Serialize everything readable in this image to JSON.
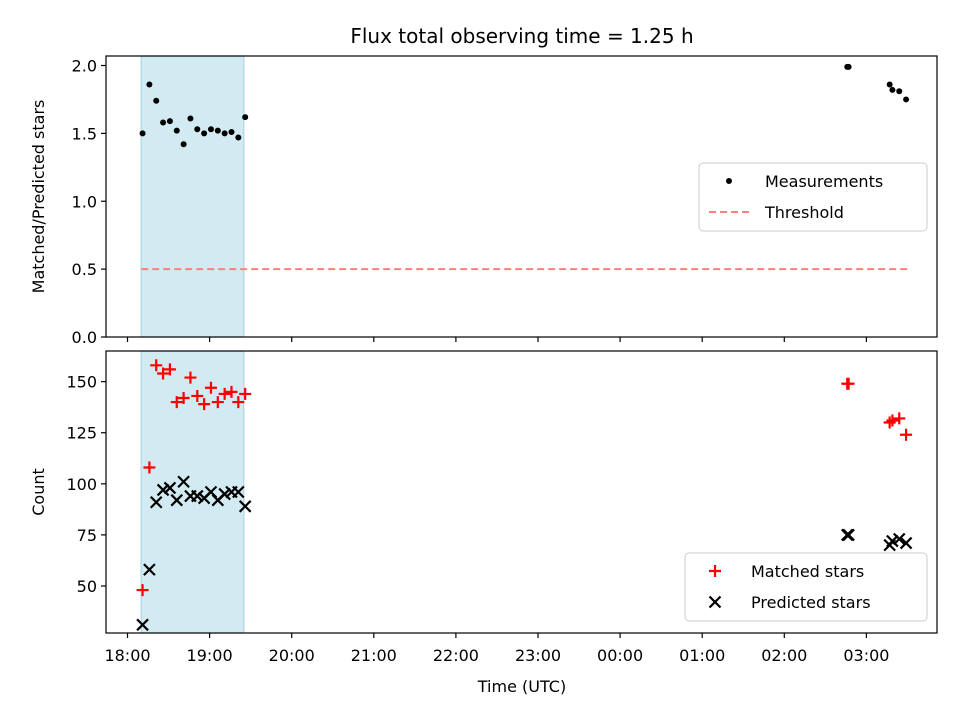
{
  "figure": {
    "title": "Flux total observing time = 1.25 h",
    "xlabel": "Time (UTC)",
    "xticks": [
      "18:00",
      "19:00",
      "20:00",
      "21:00",
      "22:00",
      "23:00",
      "00:00",
      "01:00",
      "02:00",
      "03:00"
    ],
    "shaded_interval": [
      "18:10",
      "19:25"
    ],
    "shade_color": "#add8e6"
  },
  "chart_data": [
    {
      "type": "scatter",
      "title": "Flux total observing time = 1.25 h",
      "xlabel": "Time (UTC)",
      "ylabel": "Matched/Predicted stars",
      "ylim": [
        0,
        2.07
      ],
      "yticks": [
        "0.0",
        "0.5",
        "1.0",
        "1.5",
        "2.0"
      ],
      "legend_position": "center-right",
      "series": [
        {
          "name": "Measurements",
          "color": "#000000",
          "marker": "dot",
          "points": [
            [
              "18:11",
              1.5
            ],
            [
              "18:16",
              1.86
            ],
            [
              "18:21",
              1.74
            ],
            [
              "18:26",
              1.58
            ],
            [
              "18:31",
              1.59
            ],
            [
              "18:36",
              1.52
            ],
            [
              "18:41",
              1.42
            ],
            [
              "18:46",
              1.61
            ],
            [
              "18:51",
              1.53
            ],
            [
              "18:56",
              1.5
            ],
            [
              "19:01",
              1.53
            ],
            [
              "19:06",
              1.52
            ],
            [
              "19:11",
              1.5
            ],
            [
              "19:16",
              1.51
            ],
            [
              "19:21",
              1.47
            ],
            [
              "19:26",
              1.62
            ],
            [
              "02:46",
              1.99
            ],
            [
              "02:47",
              1.99
            ],
            [
              "03:17",
              1.86
            ],
            [
              "03:19",
              1.82
            ],
            [
              "03:24",
              1.81
            ],
            [
              "03:29",
              1.75
            ]
          ]
        },
        {
          "name": "Threshold",
          "color": "#ff7f7f",
          "marker": "dashed-line",
          "points": [
            [
              "18:10",
              0.5
            ],
            [
              "03:31",
              0.5
            ]
          ]
        }
      ]
    },
    {
      "type": "scatter",
      "xlabel": "Time (UTC)",
      "ylabel": "Count",
      "ylim": [
        27,
        165
      ],
      "yticks": [
        "50",
        "75",
        "100",
        "125",
        "150"
      ],
      "legend_position": "bottom-right",
      "series": [
        {
          "name": "Matched stars",
          "color": "#ff0000",
          "marker": "plus",
          "points": [
            [
              "18:11",
              48
            ],
            [
              "18:16",
              108
            ],
            [
              "18:21",
              158
            ],
            [
              "18:26",
              154
            ],
            [
              "18:31",
              156
            ],
            [
              "18:36",
              140
            ],
            [
              "18:41",
              142
            ],
            [
              "18:46",
              152
            ],
            [
              "18:51",
              143
            ],
            [
              "18:56",
              139
            ],
            [
              "19:01",
              147
            ],
            [
              "19:06",
              140
            ],
            [
              "19:11",
              144
            ],
            [
              "19:16",
              145
            ],
            [
              "19:21",
              140
            ],
            [
              "19:26",
              144
            ],
            [
              "02:46",
              149
            ],
            [
              "02:47",
              149
            ],
            [
              "03:17",
              130
            ],
            [
              "03:19",
              131
            ],
            [
              "03:24",
              132
            ],
            [
              "03:29",
              124
            ]
          ]
        },
        {
          "name": "Predicted stars",
          "color": "#000000",
          "marker": "x",
          "points": [
            [
              "18:11",
              31
            ],
            [
              "18:16",
              58
            ],
            [
              "18:21",
              91
            ],
            [
              "18:26",
              97
            ],
            [
              "18:31",
              98
            ],
            [
              "18:36",
              92
            ],
            [
              "18:41",
              101
            ],
            [
              "18:46",
              94
            ],
            [
              "18:51",
              94
            ],
            [
              "18:56",
              93
            ],
            [
              "19:01",
              96
            ],
            [
              "19:06",
              92
            ],
            [
              "19:11",
              95
            ],
            [
              "19:16",
              96
            ],
            [
              "19:21",
              96
            ],
            [
              "19:26",
              89
            ],
            [
              "02:46",
              75
            ],
            [
              "02:47",
              75
            ],
            [
              "03:17",
              70
            ],
            [
              "03:19",
              72
            ],
            [
              "03:24",
              73
            ],
            [
              "03:29",
              71
            ]
          ]
        }
      ]
    }
  ]
}
